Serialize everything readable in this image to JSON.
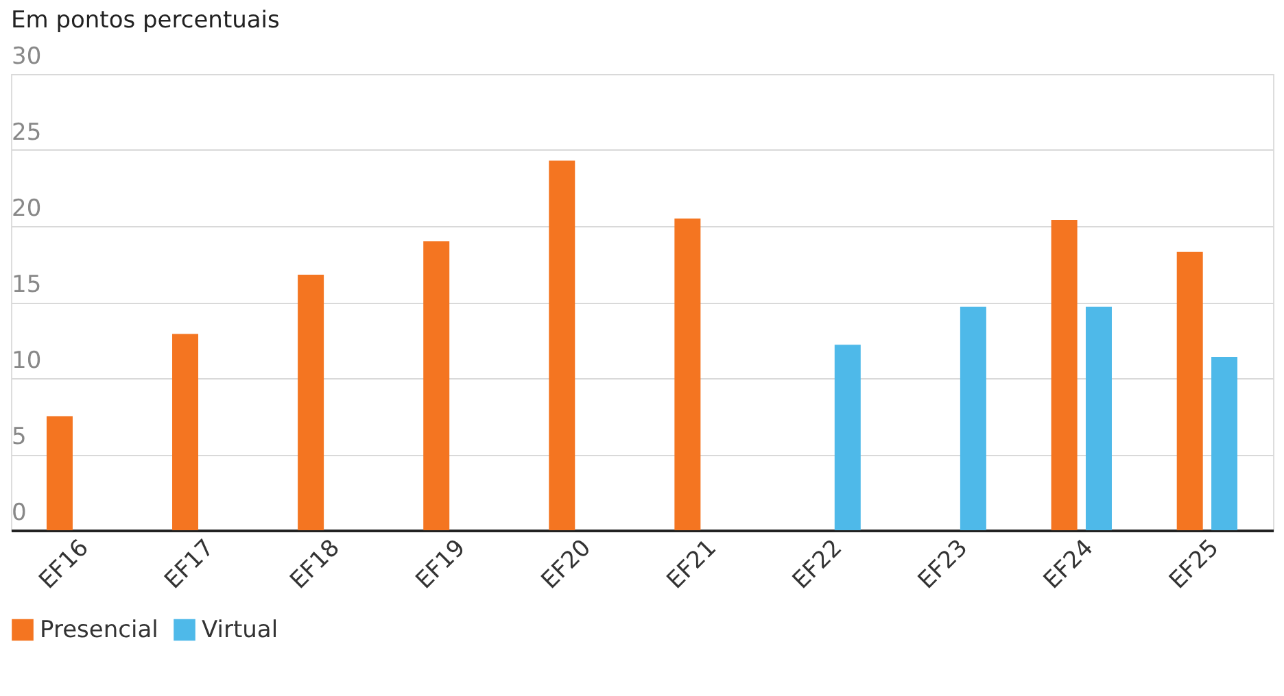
{
  "chart_data": {
    "type": "bar",
    "title": "Em pontos percentuais",
    "categories": [
      "EF16",
      "EF17",
      "EF18",
      "EF19",
      "EF20",
      "EF21",
      "EF22",
      "EF23",
      "EF24",
      "EF25"
    ],
    "series": [
      {
        "name": "Presencial",
        "color": "#f47521",
        "values": [
          7.5,
          12.9,
          16.8,
          19.0,
          24.3,
          20.5,
          null,
          null,
          20.4,
          18.3
        ]
      },
      {
        "name": "Virtual",
        "color": "#4eb9e9",
        "values": [
          null,
          null,
          null,
          null,
          null,
          null,
          12.2,
          14.7,
          14.7,
          11.4
        ]
      }
    ],
    "ylim": [
      0,
      30
    ],
    "yticks": [
      0,
      5,
      10,
      15,
      20,
      25,
      30
    ],
    "grid": "y",
    "legend": "bottom"
  }
}
